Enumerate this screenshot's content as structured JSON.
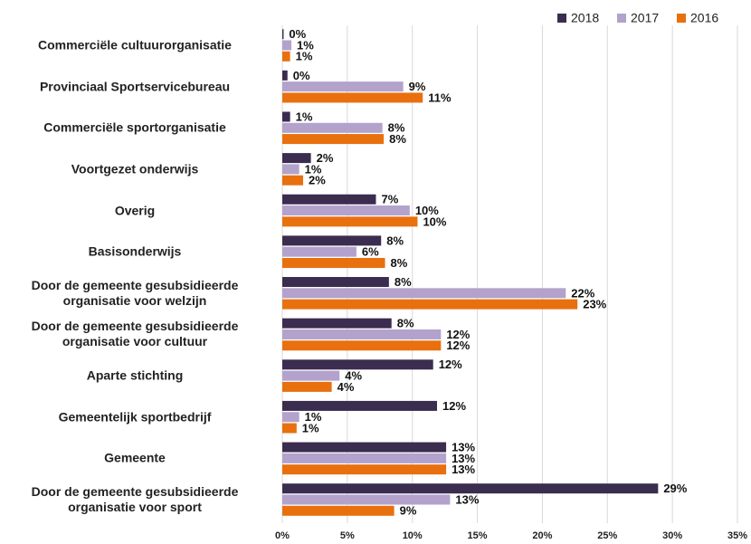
{
  "chart_data": {
    "type": "barh",
    "categories": [
      "Commerciële cultuurorganisatie",
      "Provinciaal Sportservicebureau",
      "Commerciële sportorganisatie",
      "Voortgezet onderwijs",
      "Overig",
      "Basisonderwijs",
      "Door de gemeente gesubsidieerde organisatie voor welzijn",
      "Door de gemeente gesubsidieerde organisatie voor cultuur",
      "Aparte stichting",
      "Gemeentelijk sportbedrijf",
      "Gemeente",
      "Door de gemeente gesubsidieerde organisatie voor sport"
    ],
    "series": [
      {
        "name": "2018",
        "color": "#3b2d4f",
        "values": [
          0.1,
          0.4,
          0.6,
          2.2,
          7.2,
          7.6,
          8.2,
          8.4,
          11.6,
          11.9,
          12.6,
          28.9
        ],
        "value_labels": [
          "0%",
          "0%",
          "1%",
          "2%",
          "7%",
          "8%",
          "8%",
          "8%",
          "12%",
          "12%",
          "13%",
          "29%"
        ]
      },
      {
        "name": "2017",
        "color": "#b3a2cc",
        "values": [
          0.7,
          9.3,
          7.7,
          1.3,
          9.8,
          5.7,
          21.8,
          12.2,
          4.4,
          1.3,
          12.6,
          12.9
        ],
        "value_labels": [
          "1%",
          "9%",
          "8%",
          "1%",
          "10%",
          "6%",
          "22%",
          "12%",
          "4%",
          "1%",
          "13%",
          "13%"
        ]
      },
      {
        "name": "2016",
        "color": "#e8700e",
        "values": [
          0.6,
          10.8,
          7.8,
          1.6,
          10.4,
          7.9,
          22.7,
          12.2,
          3.8,
          1.1,
          12.6,
          8.6
        ],
        "value_labels": [
          "1%",
          "11%",
          "8%",
          "2%",
          "10%",
          "8%",
          "23%",
          "12%",
          "4%",
          "1%",
          "13%",
          "9%"
        ]
      }
    ],
    "xlim": [
      0,
      35
    ],
    "xticks": [
      {
        "value": 0,
        "label": "0%"
      },
      {
        "value": 5,
        "label": "5%"
      },
      {
        "value": 10,
        "label": "10%"
      },
      {
        "value": 15,
        "label": "15%"
      },
      {
        "value": 20,
        "label": "20%"
      },
      {
        "value": 25,
        "label": "25%"
      },
      {
        "value": 30,
        "label": "30%"
      },
      {
        "value": 35,
        "label": "35%"
      }
    ],
    "grid": true,
    "legend": "top-right"
  }
}
